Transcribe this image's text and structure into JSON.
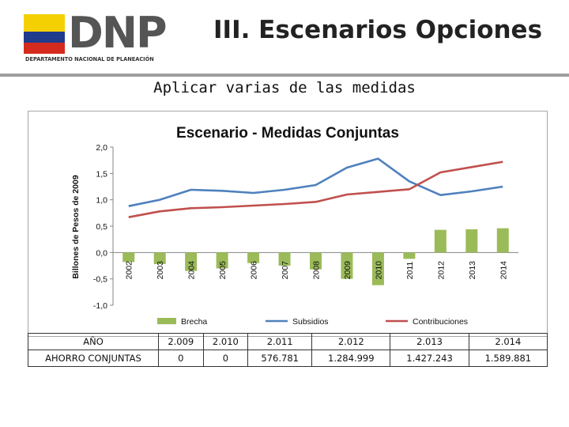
{
  "header": {
    "logo_text": "DNP",
    "logo_subtitle": "DEPARTAMENTO NACIONAL DE PLANEACIÓN",
    "flag_colors": [
      "#f4d003",
      "#1f3c8c",
      "#d52b1e"
    ],
    "title": "III. Escenarios Opciones"
  },
  "subtitle": "Aplicar varias de las medidas",
  "chart_data": {
    "type": "bar+line",
    "title": "Escenario - Medidas Conjuntas",
    "ylabel": "Billones de Pesos de 2009",
    "xlabel": "",
    "ylim": [
      -1.0,
      2.0
    ],
    "yticks": [
      "2,0",
      "1,5",
      "1,0",
      "0,5",
      "0,0",
      "-0,5",
      "-1,0"
    ],
    "ytick_values": [
      2.0,
      1.5,
      1.0,
      0.5,
      0.0,
      -0.5,
      -1.0
    ],
    "categories": [
      "2002",
      "2003",
      "2004",
      "2005",
      "2006",
      "2007",
      "2008",
      "2009",
      "2010",
      "2011",
      "2012",
      "2013",
      "2014"
    ],
    "series": [
      {
        "name": "Brecha",
        "kind": "bar",
        "color": "#9bbb59",
        "values": [
          -0.18,
          -0.22,
          -0.35,
          -0.3,
          -0.2,
          -0.25,
          -0.32,
          -0.5,
          -0.62,
          -0.12,
          0.43,
          0.44,
          0.46
        ]
      },
      {
        "name": "Subsidios",
        "kind": "line",
        "color": "#4f81bd",
        "values": [
          0.88,
          1.0,
          1.19,
          1.17,
          1.13,
          1.19,
          1.28,
          1.61,
          1.78,
          1.35,
          1.09,
          1.16,
          1.25
        ]
      },
      {
        "name": "Contribuciones",
        "kind": "line",
        "color": "#c0504d",
        "values": [
          0.67,
          0.78,
          0.84,
          0.86,
          0.89,
          0.92,
          0.96,
          1.1,
          1.15,
          1.2,
          1.52,
          1.62,
          1.72
        ]
      }
    ],
    "legend_position": "bottom"
  },
  "table": {
    "row_headers": [
      "AÑO",
      "AHORRO CONJUNTAS"
    ],
    "years": [
      "2.009",
      "2.010",
      "2.011",
      "2.012",
      "2.013",
      "2.014"
    ],
    "values": [
      "0",
      "0",
      "576.781",
      "1.284.999",
      "1.427.243",
      "1.589.881"
    ]
  }
}
